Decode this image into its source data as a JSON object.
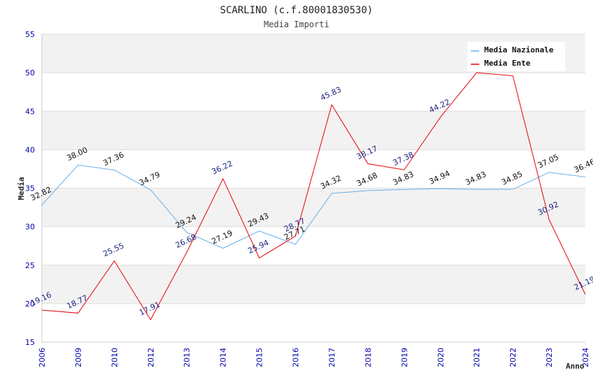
{
  "chart_data": {
    "type": "line",
    "title": "SCARLINO (c.f.80001830530)",
    "subtitle": "Media Importi",
    "xlabel": "Anno",
    "ylabel": "Media",
    "ylim": [
      15,
      55
    ],
    "yticks": [
      15,
      20,
      25,
      30,
      35,
      40,
      45,
      50,
      55
    ],
    "categories": [
      "2006",
      "2009",
      "2010",
      "2012",
      "2013",
      "2014",
      "2015",
      "2016",
      "2017",
      "2018",
      "2019",
      "2020",
      "2021",
      "2022",
      "2023",
      "2024"
    ],
    "legend_position": "top-right",
    "series": [
      {
        "name": "Media Nazionale",
        "color": "#6aaee8",
        "values": [
          32.82,
          38.0,
          37.36,
          34.79,
          29.24,
          27.19,
          29.43,
          27.71,
          34.32,
          34.68,
          34.83,
          34.94,
          34.83,
          34.85,
          37.05,
          36.46
        ],
        "labels": [
          "32.82",
          "38.00",
          "37.36",
          "34.79",
          "29.24",
          "27.19",
          "29.43",
          "27.71",
          "34.32",
          "34.68",
          "34.83",
          "34.94",
          "34.83",
          "34.85",
          "37.05",
          "36.46"
        ]
      },
      {
        "name": "Media Ente",
        "color": "#e8000b",
        "values": [
          19.16,
          18.77,
          25.55,
          17.91,
          26.68,
          36.22,
          25.94,
          28.77,
          45.83,
          38.17,
          37.38,
          44.22,
          50.0,
          49.6,
          30.92,
          21.19
        ],
        "labels": [
          "19.16",
          "18.77",
          "25.55",
          "17.91",
          "26.68",
          "36.22",
          "25.94",
          "28.77",
          "45.83",
          "38.17",
          "37.38",
          "44.22",
          "",
          "",
          "30.92",
          "21.19"
        ]
      }
    ]
  }
}
